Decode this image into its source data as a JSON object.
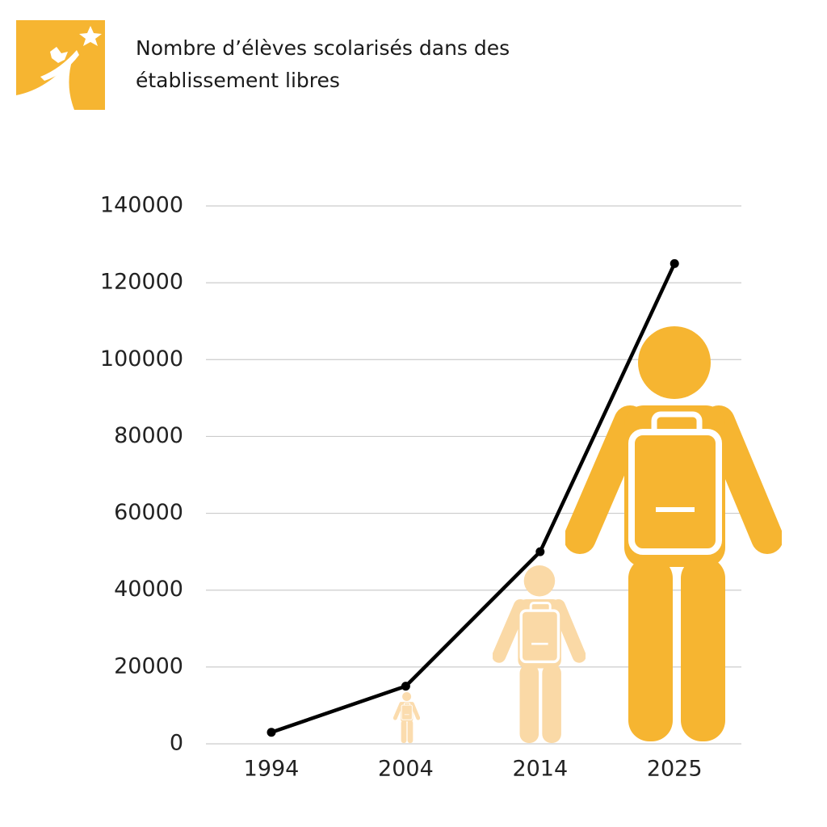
{
  "chart_data": {
    "type": "line",
    "title": "Nombre d’élèves scolarisés dans des établissement libres",
    "categories": [
      "1994",
      "2004",
      "2014",
      "2025"
    ],
    "values": [
      3000,
      15000,
      50000,
      125000
    ],
    "color": "#000000",
    "ylim": [
      0,
      140000
    ],
    "yticks": [
      0,
      20000,
      40000,
      60000,
      80000,
      100000,
      120000,
      140000
    ],
    "grid": true
  }
}
